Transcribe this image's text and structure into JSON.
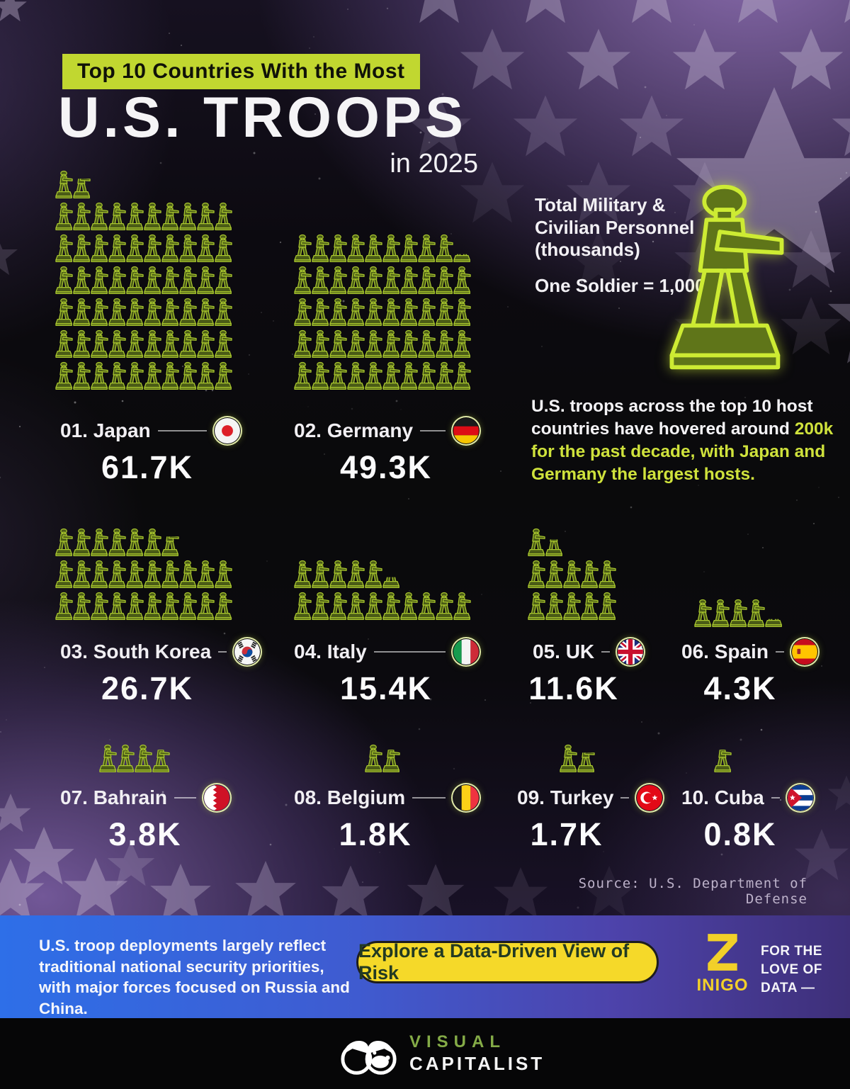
{
  "header": {
    "kicker": "Top 10 Countries With the Most",
    "title": "U.S. TROOPS",
    "subtitle": "in 2025"
  },
  "legend": {
    "label": "Total Military &\nCivilian Personnel\n(thousands)",
    "scale": "One Soldier = 1,000",
    "icon": "toy-soldier-icon"
  },
  "note": {
    "lead": "U.S. troops across the top 10 host countries have hovered around ",
    "highlight": "200k for the past decade, with Japan and Germany the largest hosts."
  },
  "chart_data": {
    "type": "pictogram",
    "title": "Top 10 Countries With the Most U.S. Troops in 2025",
    "unit": "thousands of total military & civilian personnel",
    "icon_unit": "One Soldier = 1,000",
    "countries": [
      {
        "rank": "01.",
        "name": "Japan",
        "label": "01. Japan",
        "value": 61.7,
        "value_label": "61.7K",
        "per_row": 10,
        "flag": "japan"
      },
      {
        "rank": "02.",
        "name": "Germany",
        "label": "02. Germany",
        "value": 49.3,
        "value_label": "49.3K",
        "per_row": 10,
        "flag": "germany"
      },
      {
        "rank": "03.",
        "name": "South Korea",
        "label": "03. South Korea",
        "value": 26.7,
        "value_label": "26.7K",
        "per_row": 10,
        "flag": "south-korea"
      },
      {
        "rank": "04.",
        "name": "Italy",
        "label": "04. Italy",
        "value": 15.4,
        "value_label": "15.4K",
        "per_row": 10,
        "flag": "italy"
      },
      {
        "rank": "05.",
        "name": "UK",
        "label": "05. UK",
        "value": 11.6,
        "value_label": "11.6K",
        "per_row": 5,
        "flag": "uk"
      },
      {
        "rank": "06.",
        "name": "Spain",
        "label": "06. Spain",
        "value": 4.3,
        "value_label": "4.3K",
        "per_row": 10,
        "flag": "spain"
      },
      {
        "rank": "07.",
        "name": "Bahrain",
        "label": "07. Bahrain",
        "value": 3.8,
        "value_label": "3.8K",
        "per_row": 10,
        "flag": "bahrain"
      },
      {
        "rank": "08.",
        "name": "Belgium",
        "label": "08. Belgium",
        "value": 1.8,
        "value_label": "1.8K",
        "per_row": 10,
        "flag": "belgium"
      },
      {
        "rank": "09.",
        "name": "Turkey",
        "label": "09. Turkey",
        "value": 1.7,
        "value_label": "1.7K",
        "per_row": 10,
        "flag": "turkey"
      },
      {
        "rank": "10.",
        "name": "Cuba",
        "label": "10. Cuba",
        "value": 0.8,
        "value_label": "0.8K",
        "per_row": 10,
        "flag": "cuba"
      }
    ]
  },
  "source": "Source: U.S. Department of Defense",
  "footer": {
    "note": "U.S. troop deployments largely reflect traditional national security priorities, with major forces focused on Russia and China.",
    "button_label": "Explore a Data-Driven View of Risk",
    "partner_name": "INIGO",
    "partner_tagline": "FOR THE\nLOVE OF\nDATA —"
  },
  "branding": {
    "word1": "VISUAL",
    "word2": "CAPITALIST"
  },
  "colors": {
    "accent_lime": "#c1d730",
    "highlight_text": "#cfe23c",
    "soldier_fill": "#4a5b16",
    "soldier_stroke": "#a9c72e",
    "footer_blue": "#2e6fe8",
    "footer_purple": "#3e2f78",
    "button_yellow": "#f5d929",
    "inigo_yellow": "#f2d029",
    "vc_green": "#84ab47"
  }
}
